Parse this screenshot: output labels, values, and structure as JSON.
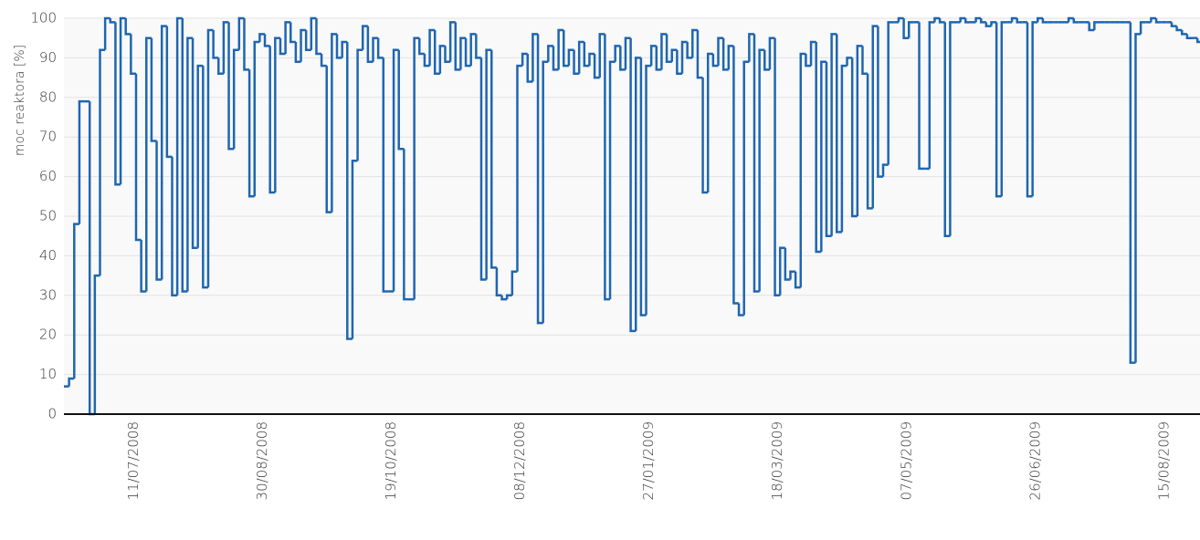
{
  "chart_data": {
    "type": "step-line",
    "y_label": "moc reaktora [%]",
    "ylim": [
      0,
      100
    ],
    "yticks": [
      0,
      10,
      20,
      30,
      40,
      50,
      60,
      70,
      80,
      90,
      100
    ],
    "grid": true,
    "xlim": [
      "2008-06-16",
      "2009-08-31"
    ],
    "xticks": [
      {
        "value": "2008-07-11",
        "label": "11/07/2008"
      },
      {
        "value": "2008-08-30",
        "label": "30/08/2008"
      },
      {
        "value": "2008-10-19",
        "label": "19/10/2008"
      },
      {
        "value": "2008-12-08",
        "label": "08/12/2008"
      },
      {
        "value": "2009-01-27",
        "label": "27/01/2009"
      },
      {
        "value": "2009-03-18",
        "label": "18/03/2009"
      },
      {
        "value": "2009-05-07",
        "label": "07/05/2009"
      },
      {
        "value": "2009-06-26",
        "label": "26/06/2009"
      },
      {
        "value": "2009-08-15",
        "label": "15/08/2009"
      }
    ],
    "color": "#1f66b0",
    "x": [
      "2008-06-16",
      "2008-06-18",
      "2008-06-20",
      "2008-06-22",
      "2008-06-24",
      "2008-06-26",
      "2008-06-28",
      "2008-06-30",
      "2008-07-02",
      "2008-07-04",
      "2008-07-06",
      "2008-07-08",
      "2008-07-10",
      "2008-07-12",
      "2008-07-14",
      "2008-07-16",
      "2008-07-18",
      "2008-07-20",
      "2008-07-22",
      "2008-07-24",
      "2008-07-26",
      "2008-07-28",
      "2008-07-30",
      "2008-08-01",
      "2008-08-03",
      "2008-08-05",
      "2008-08-07",
      "2008-08-09",
      "2008-08-11",
      "2008-08-13",
      "2008-08-15",
      "2008-08-17",
      "2008-08-19",
      "2008-08-21",
      "2008-08-23",
      "2008-08-25",
      "2008-08-27",
      "2008-08-29",
      "2008-08-31",
      "2008-09-02",
      "2008-09-04",
      "2008-09-06",
      "2008-09-08",
      "2008-09-10",
      "2008-09-12",
      "2008-09-14",
      "2008-09-16",
      "2008-09-18",
      "2008-09-20",
      "2008-09-22",
      "2008-09-24",
      "2008-09-26",
      "2008-09-28",
      "2008-09-30",
      "2008-10-02",
      "2008-10-04",
      "2008-10-06",
      "2008-10-08",
      "2008-10-10",
      "2008-10-12",
      "2008-10-14",
      "2008-10-16",
      "2008-10-18",
      "2008-10-20",
      "2008-10-22",
      "2008-10-24",
      "2008-10-26",
      "2008-10-28",
      "2008-10-30",
      "2008-11-01",
      "2008-11-03",
      "2008-11-05",
      "2008-11-07",
      "2008-11-09",
      "2008-11-11",
      "2008-11-13",
      "2008-11-15",
      "2008-11-17",
      "2008-11-19",
      "2008-11-21",
      "2008-11-23",
      "2008-11-25",
      "2008-11-27",
      "2008-11-29",
      "2008-12-01",
      "2008-12-03",
      "2008-12-05",
      "2008-12-07",
      "2008-12-09",
      "2008-12-11",
      "2008-12-13",
      "2008-12-15",
      "2008-12-17",
      "2008-12-19",
      "2008-12-21",
      "2008-12-23",
      "2008-12-25",
      "2008-12-27",
      "2008-12-29",
      "2008-12-31",
      "2009-01-02",
      "2009-01-04",
      "2009-01-06",
      "2009-01-08",
      "2009-01-10",
      "2009-01-12",
      "2009-01-14",
      "2009-01-16",
      "2009-01-18",
      "2009-01-20",
      "2009-01-22",
      "2009-01-24",
      "2009-01-26",
      "2009-01-28",
      "2009-01-30",
      "2009-02-01",
      "2009-02-03",
      "2009-02-05",
      "2009-02-07",
      "2009-02-09",
      "2009-02-11",
      "2009-02-13",
      "2009-02-15",
      "2009-02-17",
      "2009-02-19",
      "2009-02-21",
      "2009-02-23",
      "2009-02-25",
      "2009-02-27",
      "2009-03-01",
      "2009-03-03",
      "2009-03-05",
      "2009-03-07",
      "2009-03-09",
      "2009-03-11",
      "2009-03-13",
      "2009-03-15",
      "2009-03-17",
      "2009-03-19",
      "2009-03-21",
      "2009-03-23",
      "2009-03-25",
      "2009-03-27",
      "2009-03-29",
      "2009-03-31",
      "2009-04-02",
      "2009-04-04",
      "2009-04-06",
      "2009-04-08",
      "2009-04-10",
      "2009-04-12",
      "2009-04-14",
      "2009-04-16",
      "2009-04-18",
      "2009-04-20",
      "2009-04-22",
      "2009-04-24",
      "2009-04-26",
      "2009-04-28",
      "2009-04-30",
      "2009-05-02",
      "2009-05-04",
      "2009-05-06",
      "2009-05-08",
      "2009-05-10",
      "2009-05-12",
      "2009-05-14",
      "2009-05-16",
      "2009-05-18",
      "2009-05-20",
      "2009-05-22",
      "2009-05-24",
      "2009-05-26",
      "2009-05-28",
      "2009-05-30",
      "2009-06-01",
      "2009-06-03",
      "2009-06-05",
      "2009-06-07",
      "2009-06-09",
      "2009-06-11",
      "2009-06-13",
      "2009-06-15",
      "2009-06-17",
      "2009-06-19",
      "2009-06-21",
      "2009-06-23",
      "2009-06-25",
      "2009-06-27",
      "2009-06-29",
      "2009-07-01",
      "2009-07-03",
      "2009-07-05",
      "2009-07-07",
      "2009-07-09",
      "2009-07-11",
      "2009-07-13",
      "2009-07-15",
      "2009-07-17",
      "2009-07-19",
      "2009-07-21",
      "2009-07-23",
      "2009-07-25",
      "2009-07-27",
      "2009-07-29",
      "2009-07-31",
      "2009-08-02",
      "2009-08-04",
      "2009-08-06",
      "2009-08-08",
      "2009-08-10",
      "2009-08-12",
      "2009-08-14",
      "2009-08-16",
      "2009-08-18",
      "2009-08-20",
      "2009-08-22",
      "2009-08-24",
      "2009-08-26",
      "2009-08-28",
      "2009-08-30"
    ],
    "values": [
      7,
      9,
      48,
      79,
      79,
      0,
      35,
      92,
      100,
      99,
      58,
      100,
      96,
      86,
      44,
      31,
      95,
      69,
      34,
      98,
      65,
      30,
      100,
      31,
      95,
      42,
      88,
      32,
      97,
      90,
      86,
      99,
      67,
      92,
      100,
      87,
      55,
      94,
      96,
      93,
      56,
      95,
      91,
      99,
      94,
      89,
      97,
      92,
      100,
      91,
      88,
      51,
      96,
      90,
      94,
      19,
      64,
      92,
      98,
      89,
      95,
      90,
      31,
      31,
      92,
      67,
      29,
      29,
      95,
      91,
      88,
      97,
      86,
      93,
      89,
      99,
      87,
      95,
      88,
      96,
      90,
      34,
      92,
      37,
      30,
      29,
      30,
      36,
      88,
      91,
      84,
      96,
      23,
      89,
      93,
      87,
      97,
      88,
      92,
      86,
      94,
      88,
      91,
      85,
      96,
      29,
      89,
      93,
      87,
      95,
      21,
      90,
      25,
      88,
      93,
      87,
      96,
      89,
      92,
      86,
      94,
      90,
      97,
      85,
      56,
      91,
      88,
      95,
      87,
      93,
      28,
      25,
      89,
      96,
      31,
      92,
      87,
      95,
      30,
      42,
      34,
      36,
      32,
      91,
      88,
      94,
      41,
      89,
      45,
      96,
      46,
      88,
      90,
      50,
      93,
      86,
      52,
      98,
      60,
      63,
      99,
      99,
      100,
      95,
      99,
      99,
      62,
      62,
      99,
      100,
      99,
      45,
      99,
      99,
      100,
      99,
      99,
      100,
      99,
      98,
      99,
      55,
      99,
      99,
      100,
      99,
      99,
      55,
      99,
      100,
      99,
      99,
      99,
      99,
      99,
      100,
      99,
      99,
      99,
      97,
      99,
      99,
      99,
      99,
      99,
      99,
      99,
      13,
      96,
      99,
      99,
      100,
      99,
      99,
      99,
      98,
      97,
      96,
      95,
      95,
      94
    ]
  }
}
